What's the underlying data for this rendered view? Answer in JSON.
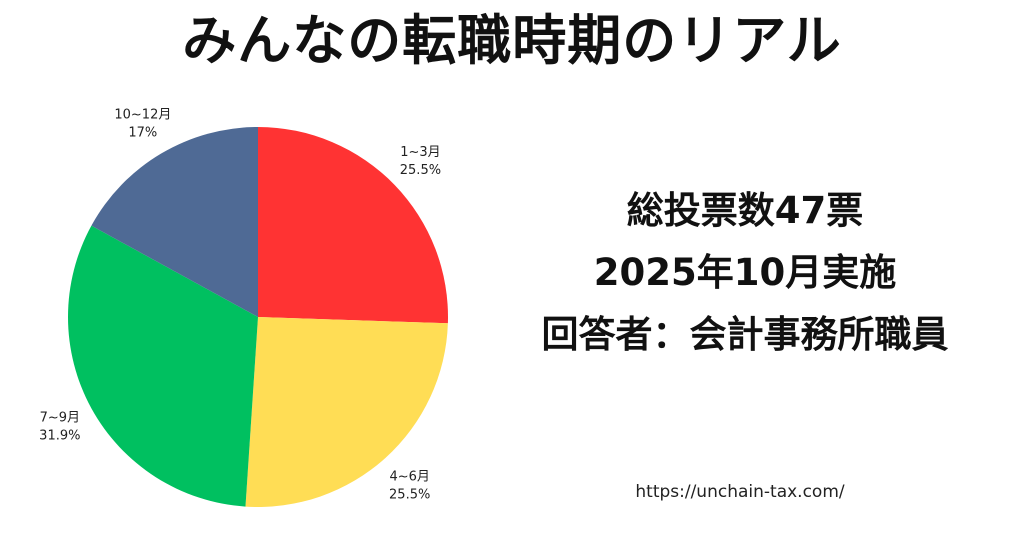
{
  "title": "みんなの転職時期のリアル",
  "info": {
    "line1": "総投票数47票",
    "line2": "2025年10月実施",
    "line3": "回答者：会計事務所職員"
  },
  "url": "https://unchain-tax.com/",
  "chart_data": {
    "type": "pie",
    "slices": [
      {
        "name": "1~3月",
        "value": 25.5,
        "label": "25.5%",
        "color": "#ff3333"
      },
      {
        "name": "4~6月",
        "value": 25.5,
        "label": "25.5%",
        "color": "#ffdd55"
      },
      {
        "name": "7~9月",
        "value": 31.9,
        "label": "31.9%",
        "color": "#00c060"
      },
      {
        "name": "10~12月",
        "value": 17,
        "label": "17%",
        "color": "#4f6a95"
      }
    ],
    "start_angle": "12 o'clock",
    "direction": "clockwise",
    "legend": "none"
  }
}
